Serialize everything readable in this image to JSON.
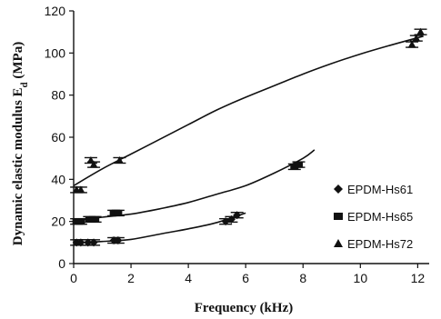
{
  "chart_data": {
    "type": "scatter",
    "xlabel": "Frequency (kHz)",
    "ylabel": "Dynamic elastic modulus E",
    "ylabel_subscript": "d",
    "ylabel_unit": " (MPa)",
    "xlim": [
      0,
      12.4
    ],
    "ylim": [
      0,
      120
    ],
    "xticks": [
      0,
      2,
      4,
      6,
      8,
      10,
      12
    ],
    "yticks": [
      0,
      20,
      40,
      60,
      80,
      100,
      120
    ],
    "grid": false,
    "legend_position": "right",
    "series": [
      {
        "name": "EPDM-Hs61",
        "marker": "diamond",
        "x": [
          0.1,
          0.25,
          0.5,
          0.7,
          1.4,
          1.55,
          5.3,
          5.5,
          5.7
        ],
        "y": [
          10,
          10,
          10,
          10,
          11,
          11,
          20,
          21,
          23
        ],
        "trend": [
          [
            0,
            10
          ],
          [
            1,
            10.5
          ],
          [
            2,
            11.5
          ],
          [
            3,
            14
          ],
          [
            4,
            16.5
          ],
          [
            5,
            19.5
          ],
          [
            6,
            24
          ]
        ]
      },
      {
        "name": "EPDM-Hs65",
        "marker": "square",
        "x": [
          0.1,
          0.25,
          0.55,
          0.75,
          1.4,
          1.55,
          7.7,
          7.85
        ],
        "y": [
          20,
          20,
          21,
          21,
          24,
          24,
          46,
          47
        ],
        "trend": [
          [
            0,
            20
          ],
          [
            1,
            22
          ],
          [
            2,
            23.5
          ],
          [
            3,
            26
          ],
          [
            4,
            29
          ],
          [
            5,
            33
          ],
          [
            6,
            37
          ],
          [
            7,
            43
          ],
          [
            8,
            50
          ],
          [
            8.4,
            54
          ]
        ]
      },
      {
        "name": "EPDM-Hs72",
        "marker": "triangle",
        "x": [
          0.1,
          0.25,
          0.6,
          0.7,
          1.6,
          11.8,
          11.95,
          12.1
        ],
        "y": [
          35,
          35,
          49,
          47,
          49,
          104,
          107,
          110
        ],
        "trend": [
          [
            0,
            37
          ],
          [
            1,
            45
          ],
          [
            2,
            52
          ],
          [
            3,
            59
          ],
          [
            4,
            66
          ],
          [
            5,
            73
          ],
          [
            6,
            79
          ],
          [
            7,
            84.5
          ],
          [
            8,
            90
          ],
          [
            9,
            95
          ],
          [
            10,
            99.5
          ],
          [
            11,
            103.5
          ],
          [
            12.2,
            108
          ]
        ]
      }
    ]
  }
}
